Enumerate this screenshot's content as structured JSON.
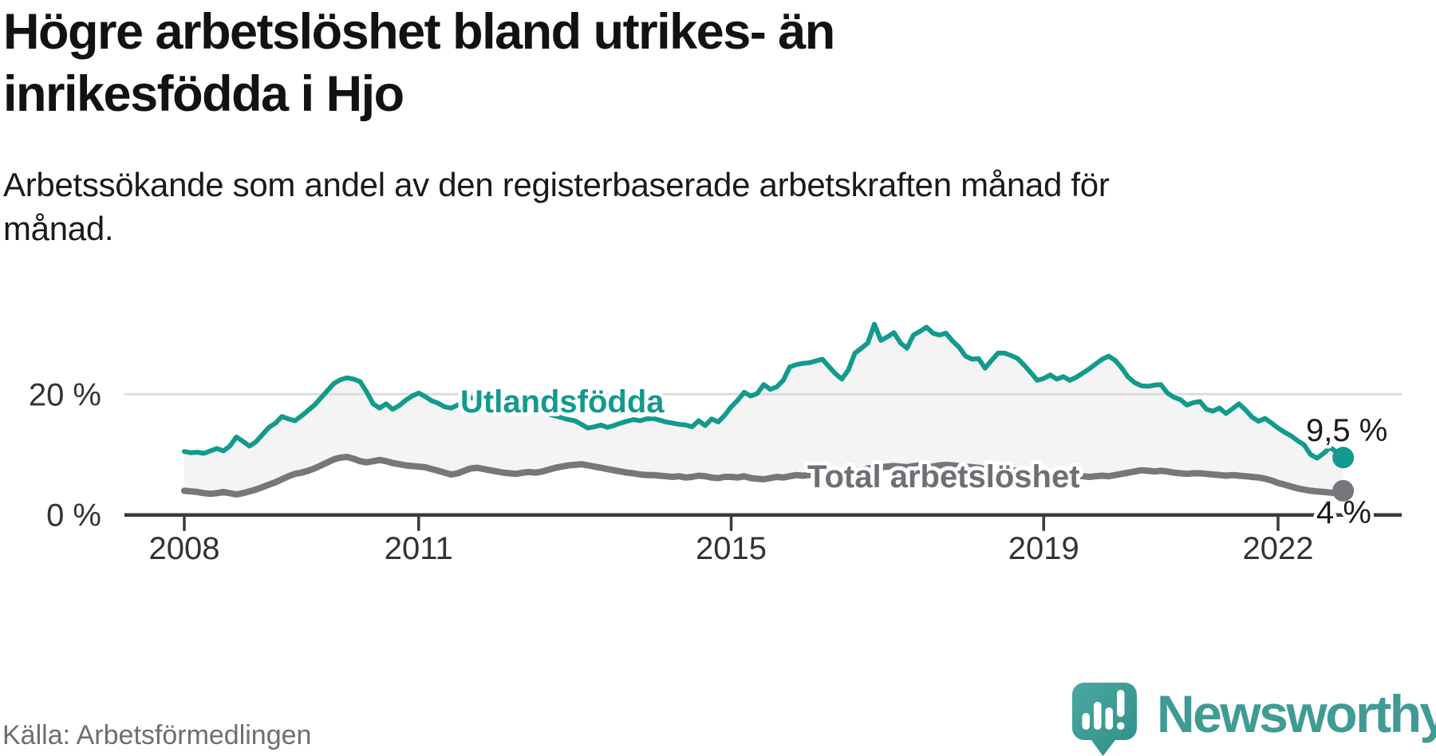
{
  "header": {
    "title_lines": [
      "Högre arbetslöshet bland utrikes- än",
      "inrikesfödda i Hjo"
    ],
    "subtitle_lines": [
      "Arbetssökande som andel av den registerbaserade arbetskraften månad för",
      "månad."
    ]
  },
  "footer": {
    "source": "Källa: Arbetsförmedlingen",
    "logo_text": "Newsworthy"
  },
  "colors": {
    "accent_teal": "#129a8d",
    "series_gray": "#76767c",
    "logo_teal": "#3f9b94",
    "text_dark": "#121212",
    "text_axis": "#333333",
    "text_source": "#6d6d76"
  },
  "chart_data": {
    "type": "line",
    "title": "Högre arbetslöshet bland utrikes- än inrikesfödda i Hjo",
    "subtitle": "Arbetssökande som andel av den registerbaserade arbetskraften månad för månad.",
    "x_unit": "month",
    "x_start": "2008-01",
    "x_end": "2022-11",
    "ylim": [
      0,
      33
    ],
    "grid": "y-20-only",
    "legend_position": "inline-labels",
    "fill_between_color": "#f4f4f4",
    "gridline_color": "#dcdcdc",
    "axis_color": "#3a3a3a",
    "tick_label_color": "#333333",
    "end_label_color": "#1a1a1a",
    "x_ticks": [
      {
        "year": 2008,
        "label": "2008"
      },
      {
        "year": 2011,
        "label": "2011"
      },
      {
        "year": 2015,
        "label": "2015"
      },
      {
        "year": 2019,
        "label": "2019"
      },
      {
        "year": 2022,
        "label": "2022"
      }
    ],
    "y_ticks": [
      {
        "value": 0,
        "label": "0 %"
      },
      {
        "value": 20,
        "label": "20 %"
      }
    ],
    "series": [
      {
        "name": "Utlandsfödda",
        "color": "#129a8d",
        "label_color": "#129a8d",
        "end_label": "9,5 %",
        "end_value": 9.5,
        "values": [
          10.5,
          10.3,
          10.4,
          10.2,
          10.6,
          11.0,
          10.6,
          11.4,
          12.9,
          12.2,
          11.4,
          12.1,
          13.3,
          14.5,
          15.2,
          16.3,
          15.9,
          15.6,
          16.4,
          17.3,
          18.2,
          19.4,
          20.6,
          21.8,
          22.4,
          22.7,
          22.5,
          22.1,
          20.4,
          18.4,
          17.7,
          18.4,
          17.5,
          18.1,
          19.0,
          19.7,
          20.2,
          19.6,
          18.9,
          18.5,
          17.9,
          17.7,
          18.2,
          18.8,
          19.4,
          19.2,
          18.8,
          18.6,
          18.4,
          18.2,
          18.3,
          17.9,
          17.7,
          17.5,
          17.3,
          17.0,
          16.7,
          16.4,
          16.1,
          15.8,
          15.6,
          15.0,
          14.4,
          14.6,
          14.9,
          14.5,
          14.8,
          15.2,
          15.5,
          15.8,
          15.6,
          15.9,
          16.0,
          15.7,
          15.4,
          15.2,
          15.0,
          14.9,
          14.6,
          15.6,
          14.8,
          15.9,
          15.4,
          16.5,
          17.9,
          19.0,
          20.3,
          19.7,
          20.1,
          21.6,
          20.8,
          21.2,
          22.3,
          24.5,
          24.9,
          25.1,
          25.2,
          25.5,
          25.8,
          24.6,
          23.4,
          22.5,
          24.0,
          26.8,
          27.6,
          28.5,
          31.6,
          28.9,
          29.5,
          30.2,
          28.5,
          27.6,
          29.8,
          30.4,
          31.1,
          30.1,
          29.8,
          30.1,
          28.8,
          27.8,
          26.3,
          25.8,
          25.9,
          24.3,
          25.6,
          26.8,
          26.8,
          26.4,
          25.9,
          24.8,
          23.6,
          22.3,
          22.6,
          23.2,
          22.5,
          22.9,
          22.3,
          22.8,
          23.5,
          24.2,
          25.0,
          25.8,
          26.3,
          25.6,
          24.3,
          22.8,
          21.9,
          21.4,
          21.3,
          21.5,
          21.6,
          20.2,
          19.5,
          19.1,
          18.2,
          18.6,
          18.8,
          17.5,
          17.2,
          17.7,
          16.8,
          17.6,
          18.4,
          17.4,
          16.2,
          15.5,
          16.0,
          15.2,
          14.4,
          13.7,
          13.1,
          12.3,
          11.6,
          10.0,
          9.4,
          10.2,
          11.2,
          10.4,
          9.5
        ]
      },
      {
        "name": "Total arbetslöshet",
        "color": "#76767c",
        "label_color": "#6e6e74",
        "end_label": "4 %",
        "end_value": 4.0,
        "values": [
          4.0,
          3.9,
          3.8,
          3.6,
          3.5,
          3.6,
          3.8,
          3.6,
          3.4,
          3.6,
          3.9,
          4.2,
          4.6,
          5.0,
          5.4,
          5.9,
          6.4,
          6.8,
          7.0,
          7.3,
          7.7,
          8.2,
          8.7,
          9.2,
          9.5,
          9.6,
          9.3,
          8.9,
          8.7,
          8.9,
          9.1,
          8.9,
          8.6,
          8.4,
          8.2,
          8.1,
          8.0,
          7.9,
          7.6,
          7.3,
          7.0,
          6.7,
          6.9,
          7.3,
          7.7,
          7.8,
          7.6,
          7.4,
          7.2,
          7.0,
          6.9,
          6.8,
          7.0,
          7.1,
          7.0,
          7.2,
          7.5,
          7.8,
          8.0,
          8.2,
          8.3,
          8.4,
          8.2,
          8.0,
          7.8,
          7.6,
          7.4,
          7.2,
          7.0,
          6.9,
          6.7,
          6.6,
          6.6,
          6.5,
          6.4,
          6.3,
          6.4,
          6.2,
          6.3,
          6.5,
          6.4,
          6.2,
          6.1,
          6.3,
          6.3,
          6.2,
          6.4,
          6.1,
          6.0,
          5.9,
          6.1,
          6.3,
          6.2,
          6.4,
          6.6,
          6.5,
          6.6,
          6.8,
          7.0,
          7.1,
          7.0,
          6.9,
          7.1,
          7.3,
          7.5,
          7.7,
          7.8,
          7.9,
          8.0,
          8.1,
          8.0,
          7.9,
          8.1,
          8.2,
          8.1,
          8.0,
          8.2,
          8.3,
          8.2,
          8.1,
          8.0,
          7.9,
          7.8,
          7.6,
          7.5,
          7.7,
          7.6,
          7.4,
          7.3,
          7.1,
          7.0,
          6.9,
          6.8,
          6.7,
          6.6,
          6.5,
          6.4,
          6.5,
          6.4,
          6.3,
          6.4,
          6.5,
          6.4,
          6.6,
          6.8,
          7.0,
          7.2,
          7.4,
          7.3,
          7.2,
          7.3,
          7.2,
          7.0,
          6.9,
          6.8,
          6.9,
          6.9,
          6.8,
          6.7,
          6.6,
          6.5,
          6.6,
          6.5,
          6.4,
          6.3,
          6.2,
          6.0,
          5.7,
          5.3,
          5.0,
          4.7,
          4.4,
          4.2,
          4.0,
          3.9,
          3.8,
          3.7,
          3.6,
          4.0
        ]
      }
    ]
  }
}
